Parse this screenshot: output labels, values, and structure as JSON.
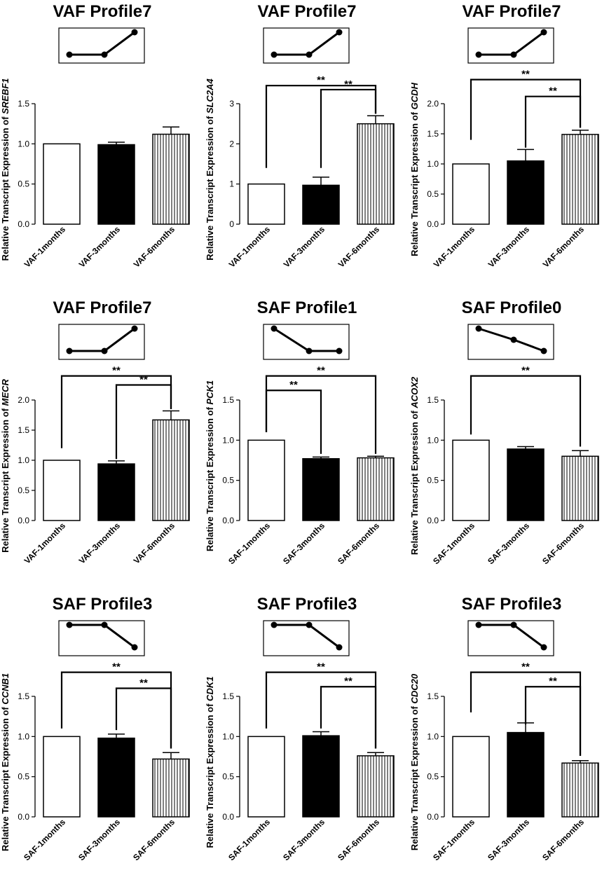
{
  "figure_title": "",
  "chart_data": [
    {
      "type": "bar",
      "title": "VAF Profile7",
      "ylabel_prefix": "Relative Transcript Expression of ",
      "gene": "SREBF1",
      "categories": [
        "VAF-1months",
        "VAF-3months",
        "VAF-6months"
      ],
      "values": [
        1.0,
        0.99,
        1.12
      ],
      "errors": [
        0.0,
        0.03,
        0.09
      ],
      "fills": [
        "white",
        "black",
        "stripes"
      ],
      "ylim": [
        0,
        1.5
      ],
      "yticks": [
        0.0,
        0.5,
        1.0,
        1.5
      ],
      "ytick_labels": [
        "0.0",
        "0.5",
        "1.0",
        "1.5"
      ],
      "profile_trend": [
        0,
        0,
        1
      ],
      "significance": []
    },
    {
      "type": "bar",
      "title": "VAF Profile7",
      "ylabel_prefix": "Relative Transcript Expression of ",
      "gene": "SLC2A4",
      "categories": [
        "VAF-1months",
        "VAF-3months",
        "VAF-6months"
      ],
      "values": [
        1.0,
        0.97,
        2.5
      ],
      "errors": [
        0.0,
        0.2,
        0.2
      ],
      "fills": [
        "white",
        "black",
        "stripes"
      ],
      "ylim": [
        0,
        3
      ],
      "yticks": [
        0,
        1,
        2,
        3
      ],
      "ytick_labels": [
        "0",
        "1",
        "2",
        "3"
      ],
      "profile_trend": [
        0,
        0,
        1
      ],
      "significance": [
        {
          "from": 1,
          "to": 2,
          "label": "**",
          "y": 3.35,
          "left_y": 1.4,
          "right_y": 2.75
        },
        {
          "from": 0,
          "to": 2,
          "label": "**",
          "y": 3.45,
          "left_y": 1.4,
          "right_y": 2.75
        }
      ]
    },
    {
      "type": "bar",
      "title": "VAF Profile7",
      "ylabel_prefix": "Relative Transcript Expression of ",
      "gene": "GCDH",
      "categories": [
        "VAF-1months",
        "VAF-3months",
        "VAF-6months"
      ],
      "values": [
        1.0,
        1.05,
        1.49
      ],
      "errors": [
        0.0,
        0.19,
        0.07
      ],
      "fills": [
        "white",
        "black",
        "stripes"
      ],
      "ylim": [
        0,
        2.0
      ],
      "yticks": [
        0.0,
        0.5,
        1.0,
        1.5,
        2.0
      ],
      "ytick_labels": [
        "0.0",
        "0.5",
        "1.0",
        "1.5",
        "2.0"
      ],
      "profile_trend": [
        0,
        0,
        1
      ],
      "significance": [
        {
          "from": 1,
          "to": 2,
          "label": "**",
          "y": 2.12,
          "left_y": 1.27,
          "right_y": 1.6
        },
        {
          "from": 0,
          "to": 2,
          "label": "**",
          "y": 2.4,
          "left_y": 1.4,
          "right_y": 1.6
        }
      ]
    },
    {
      "type": "bar",
      "title": "VAF Profile7",
      "ylabel_prefix": "Relative Transcript Expression of ",
      "gene": "MECR",
      "categories": [
        "VAF-1months",
        "VAF-3months",
        "VAF-6months"
      ],
      "values": [
        1.0,
        0.94,
        1.67
      ],
      "errors": [
        0.0,
        0.05,
        0.15
      ],
      "fills": [
        "white",
        "black",
        "stripes"
      ],
      "ylim": [
        0,
        2.0
      ],
      "yticks": [
        0.0,
        0.5,
        1.0,
        1.5,
        2.0
      ],
      "ytick_labels": [
        "0.0",
        "0.5",
        "1.0",
        "1.5",
        "2.0"
      ],
      "profile_trend": [
        0,
        0,
        1
      ],
      "significance": [
        {
          "from": 1,
          "to": 2,
          "label": "**",
          "y": 2.25,
          "left_y": 1.02,
          "right_y": 1.85
        },
        {
          "from": 0,
          "to": 2,
          "label": "**",
          "y": 2.4,
          "left_y": 1.2,
          "right_y": 1.85
        }
      ]
    },
    {
      "type": "bar",
      "title": "SAF Profile1",
      "ylabel_prefix": "Relative Transcript Expression of ",
      "gene": "PCK1",
      "categories": [
        "SAF-1months",
        "SAF-3months",
        "SAF-6months"
      ],
      "values": [
        1.0,
        0.77,
        0.78
      ],
      "errors": [
        0.0,
        0.02,
        0.02
      ],
      "fills": [
        "white",
        "black",
        "stripes"
      ],
      "ylim": [
        0,
        1.5
      ],
      "yticks": [
        0.0,
        0.5,
        1.0,
        1.5
      ],
      "ytick_labels": [
        "0.0",
        "0.5",
        "1.0",
        "1.5"
      ],
      "profile_trend": [
        1,
        0,
        0
      ],
      "significance": [
        {
          "from": 0,
          "to": 1,
          "label": "**",
          "y": 1.62,
          "left_y": 1.1,
          "right_y": 0.83
        },
        {
          "from": 0,
          "to": 2,
          "label": "**",
          "y": 1.8,
          "left_y": 1.1,
          "right_y": 0.83
        }
      ]
    },
    {
      "type": "bar",
      "title": "SAF Profile0",
      "ylabel_prefix": "Relative Transcript Expression of ",
      "gene": "ACOX2",
      "categories": [
        "SAF-1months",
        "SAF-3months",
        "SAF-6months"
      ],
      "values": [
        1.0,
        0.89,
        0.8
      ],
      "errors": [
        0.0,
        0.03,
        0.07
      ],
      "fills": [
        "white",
        "black",
        "stripes"
      ],
      "ylim": [
        0,
        1.5
      ],
      "yticks": [
        0.0,
        0.5,
        1.0,
        1.5
      ],
      "ytick_labels": [
        "0.0",
        "0.5",
        "1.0",
        "1.5"
      ],
      "profile_trend": [
        1,
        0.5,
        0
      ],
      "significance": [
        {
          "from": 0,
          "to": 2,
          "label": "**",
          "y": 1.8,
          "left_y": 1.07,
          "right_y": 0.92
        }
      ]
    },
    {
      "type": "bar",
      "title": "SAF Profile3",
      "ylabel_prefix": "Relative Transcript Expression of ",
      "gene": "CCNB1",
      "categories": [
        "SAF-1months",
        "SAF-3months",
        "SAF-6months"
      ],
      "values": [
        1.0,
        0.98,
        0.72
      ],
      "errors": [
        0.0,
        0.05,
        0.08
      ],
      "fills": [
        "white",
        "black",
        "stripes"
      ],
      "ylim": [
        0,
        1.5
      ],
      "yticks": [
        0.0,
        0.5,
        1.0,
        1.5
      ],
      "ytick_labels": [
        "0.0",
        "0.5",
        "1.0",
        "1.5"
      ],
      "profile_trend": [
        1,
        1,
        0
      ],
      "significance": [
        {
          "from": 1,
          "to": 2,
          "label": "**",
          "y": 1.6,
          "left_y": 1.08,
          "right_y": 0.85
        },
        {
          "from": 0,
          "to": 2,
          "label": "**",
          "y": 1.8,
          "left_y": 1.1,
          "right_y": 0.85
        }
      ]
    },
    {
      "type": "bar",
      "title": "SAF Profile3",
      "ylabel_prefix": "Relative Transcript Expression of ",
      "gene": "CDK1",
      "categories": [
        "SAF-1months",
        "SAF-3months",
        "SAF-6months"
      ],
      "values": [
        1.0,
        1.01,
        0.76
      ],
      "errors": [
        0.0,
        0.05,
        0.04
      ],
      "fills": [
        "white",
        "black",
        "stripes"
      ],
      "ylim": [
        0,
        1.5
      ],
      "yticks": [
        0.0,
        0.5,
        1.0,
        1.5
      ],
      "ytick_labels": [
        "0.0",
        "0.5",
        "1.0",
        "1.5"
      ],
      "profile_trend": [
        1,
        1,
        0
      ],
      "significance": [
        {
          "from": 1,
          "to": 2,
          "label": "**",
          "y": 1.62,
          "left_y": 1.1,
          "right_y": 0.85
        },
        {
          "from": 0,
          "to": 2,
          "label": "**",
          "y": 1.8,
          "left_y": 1.1,
          "right_y": 0.85
        }
      ]
    },
    {
      "type": "bar",
      "title": "SAF Profile3",
      "ylabel_prefix": "Relative Transcript Expression of ",
      "gene": "CDC20",
      "categories": [
        "SAF-1months",
        "SAF-3months",
        "SAF-6months"
      ],
      "values": [
        1.0,
        1.05,
        0.67
      ],
      "errors": [
        0.0,
        0.12,
        0.03
      ],
      "fills": [
        "white",
        "black",
        "stripes"
      ],
      "ylim": [
        0,
        1.5
      ],
      "yticks": [
        0.0,
        0.5,
        1.0,
        1.5
      ],
      "ytick_labels": [
        "0.0",
        "0.5",
        "1.0",
        "1.5"
      ],
      "profile_trend": [
        1,
        1,
        0
      ],
      "significance": [
        {
          "from": 1,
          "to": 2,
          "label": "**",
          "y": 1.62,
          "left_y": 1.15,
          "right_y": 0.76
        },
        {
          "from": 0,
          "to": 2,
          "label": "**",
          "y": 1.8,
          "left_y": 1.3,
          "right_y": 0.76
        }
      ]
    }
  ]
}
